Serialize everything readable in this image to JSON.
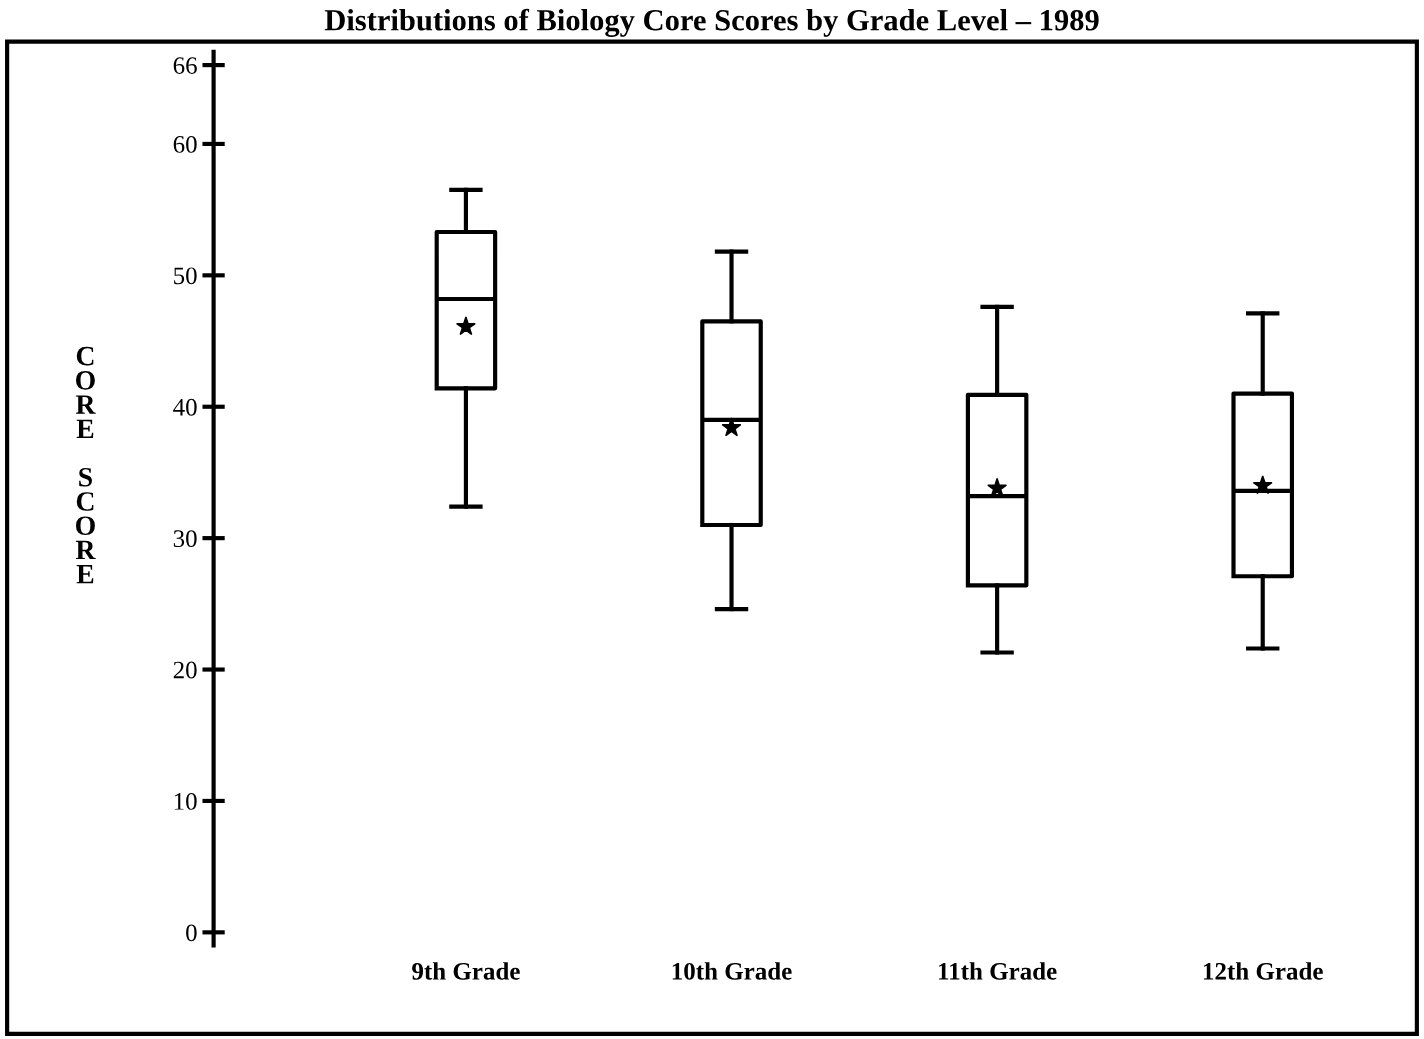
{
  "chart_data": {
    "type": "box",
    "title": "Distributions of Biology Core Scores by Grade Level – 1989",
    "ylabel": "CORE SCORE",
    "categories": [
      "9th Grade",
      "10th Grade",
      "11th Grade",
      "12th Grade"
    ],
    "boxes": [
      {
        "low": 32.4,
        "q1": 41.4,
        "median": 48.2,
        "q3": 53.3,
        "high": 56.5,
        "mean": 46.1
      },
      {
        "low": 24.6,
        "q1": 31.0,
        "median": 39.0,
        "q3": 46.5,
        "high": 51.8,
        "mean": 38.4
      },
      {
        "low": 21.3,
        "q1": 26.4,
        "median": 33.2,
        "q3": 40.9,
        "high": 47.6,
        "mean": 33.8
      },
      {
        "low": 21.6,
        "q1": 27.1,
        "median": 33.6,
        "q3": 41.0,
        "high": 47.1,
        "mean": 34.0
      }
    ],
    "color": "#000000",
    "ylim": [
      -1,
      67
    ],
    "yticks": [
      0,
      10,
      20,
      30,
      40,
      50,
      60,
      66
    ],
    "grid": false,
    "legend": false
  }
}
